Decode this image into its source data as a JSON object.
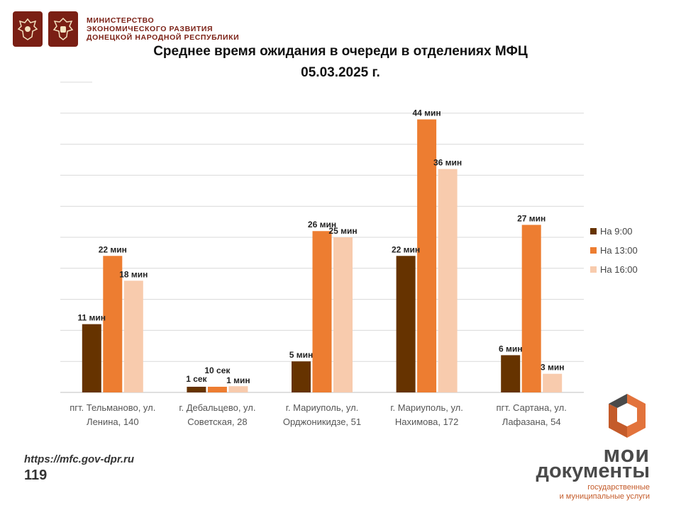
{
  "header": {
    "ministry_lines": [
      "МИНИСТЕРСТВО",
      "ЭКОНОМИЧЕСКОГО РАЗВИТИЯ",
      "ДОНЕЦКОЙ НАРОДНОЙ РЕСПУБЛИКИ"
    ],
    "emblem_icons": [
      "coat-of-arms-icon",
      "coat-of-arms-icon"
    ],
    "emblem_color": "#7a1f14"
  },
  "footer": {
    "url": "https://mfc.gov-dpr.ru",
    "page_number": "119",
    "logo": {
      "word1": "мои",
      "word2": "документы",
      "sub_line1": "государственные",
      "sub_line2": "и муниципальные услуги",
      "icon": "moi-dokumenty-logo-icon"
    }
  },
  "chart_data": {
    "type": "bar",
    "title": "Среднее время ожидания в очереди в отделениях МФЦ",
    "subtitle": "05.03.2025   г.",
    "categories": [
      [
        "пгт. Тельманово,  ул.",
        "Ленина, 140"
      ],
      [
        "г. Дебальцево, ул.",
        "Советская, 28"
      ],
      [
        "г. Мариуполь,  ул.",
        "Орджоникидзе, 51"
      ],
      [
        "г. Мариуполь,  ул.",
        "Нахимова, 172"
      ],
      [
        "пгт. Сартана, ул.",
        "Лафазана, 54"
      ]
    ],
    "unit": "min",
    "ylim": [
      0,
      50
    ],
    "grid": true,
    "legend_position": "right",
    "series": [
      {
        "name": "На 9:00",
        "color": "#663300",
        "values": [
          11,
          0.0167,
          5,
          22,
          6
        ],
        "labels": [
          "11 мин",
          "1 сек",
          "5 мин",
          "22 мин",
          "6 мин"
        ]
      },
      {
        "name": "На 13:00",
        "color": "#ed7d31",
        "values": [
          22,
          0.1667,
          26,
          44,
          27
        ],
        "labels": [
          "22 мин",
          "10 сек",
          "26 мин",
          "44 мин",
          "27 мин"
        ]
      },
      {
        "name": "На 16:00",
        "color": "#f8cbad",
        "values": [
          18,
          1,
          25,
          36,
          3
        ],
        "labels": [
          "18 мин",
          "1 мин",
          "25 мин",
          "36 мин",
          "3 мин"
        ]
      }
    ]
  }
}
